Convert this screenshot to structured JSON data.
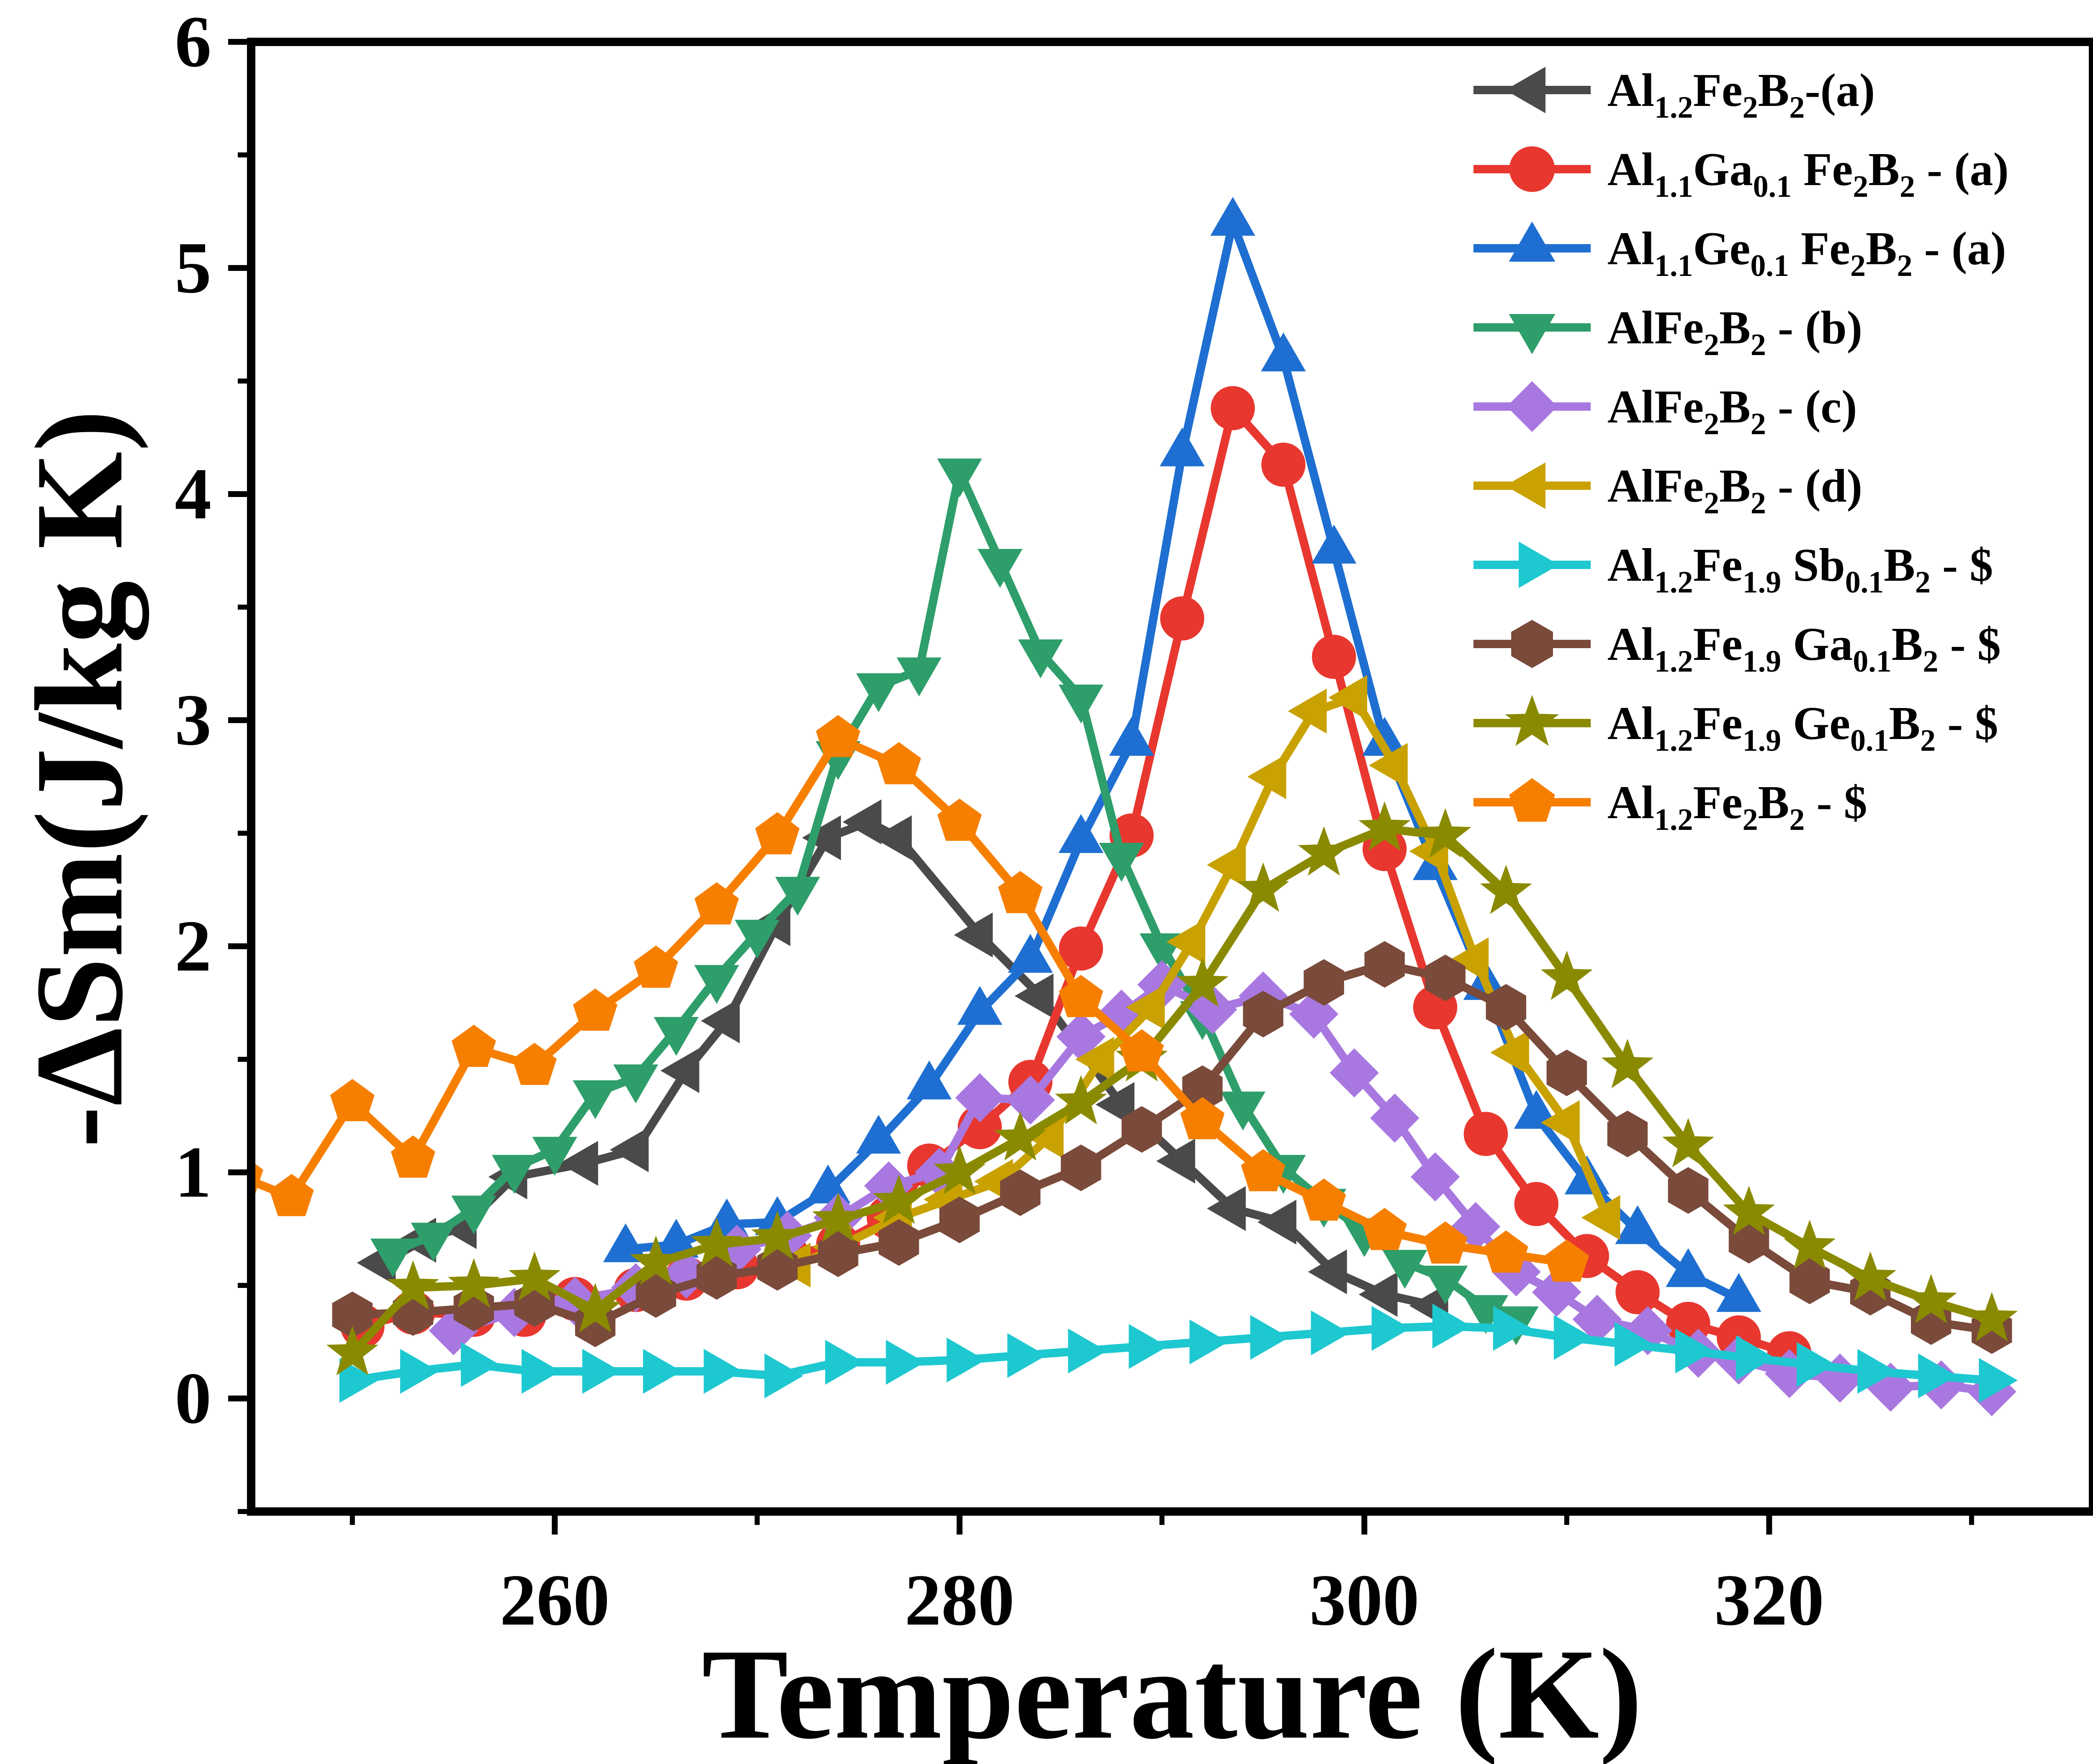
{
  "chart_data": {
    "type": "line",
    "xlabel": "Temperature (K)",
    "ylabel": "-ΔSm(J/kg K)",
    "xlim": [
      245,
      336
    ],
    "ylim": [
      -0.5,
      6
    ],
    "xticks": [
      "260",
      "280",
      "300",
      "320"
    ],
    "yticks": [
      "0",
      "1",
      "2",
      "3",
      "4",
      "5",
      "6"
    ],
    "grid": false,
    "legend_position": "top-right",
    "series": [
      {
        "name": "Al1.2Fe2B2-(a)",
        "label": [
          {
            "t": "Al"
          },
          {
            "t": "1.2",
            "sub": true
          },
          {
            "t": "Fe"
          },
          {
            "t": "2",
            "sub": true
          },
          {
            "t": "B"
          },
          {
            "t": "2",
            "sub": true
          },
          {
            "t": "-(a)"
          }
        ],
        "color": "#4a4a4a",
        "marker": "triangle-left",
        "x": [
          251.5,
          253.5,
          255.5,
          258,
          261.5,
          264,
          266.5,
          268.5,
          271,
          273.5,
          275.5,
          277,
          281,
          284,
          288,
          291,
          293.5,
          296,
          298.5,
          301,
          303.5
        ],
        "y": [
          0.6,
          0.7,
          0.76,
          0.98,
          1.04,
          1.1,
          1.45,
          1.67,
          2.1,
          2.48,
          2.55,
          2.48,
          2.05,
          1.78,
          1.3,
          1.05,
          0.84,
          0.78,
          0.56,
          0.46,
          0.41
        ]
      },
      {
        "name": "Al1.1Ga0.1 Fe2B2 - (a)",
        "label": [
          {
            "t": "Al"
          },
          {
            "t": "1.1",
            "sub": true
          },
          {
            "t": "Ga"
          },
          {
            "t": "0.1",
            "sub": true
          },
          {
            "t": " Fe"
          },
          {
            "t": "2",
            "sub": true
          },
          {
            "t": "B"
          },
          {
            "t": "2",
            "sub": true
          },
          {
            "t": " - (a)"
          }
        ],
        "color": "#e8372f",
        "marker": "circle",
        "x": [
          250.5,
          253,
          256,
          258.5,
          261,
          264,
          266.5,
          269,
          271.5,
          274,
          276.5,
          278.5,
          281,
          283.5,
          286,
          288.5,
          291,
          293.5,
          296,
          298.5,
          301,
          303.5,
          306,
          308.5,
          311,
          313.5,
          316,
          318.5,
          321
        ],
        "y": [
          0.32,
          0.38,
          0.37,
          0.37,
          0.44,
          0.48,
          0.53,
          0.58,
          0.63,
          0.68,
          0.8,
          1.03,
          1.2,
          1.4,
          1.99,
          2.49,
          3.45,
          4.38,
          4.13,
          3.28,
          2.43,
          1.73,
          1.17,
          0.86,
          0.63,
          0.47,
          0.33,
          0.27,
          0.2
        ]
      },
      {
        "name": "Al1.1Ge0.1 Fe2B2 - (a)",
        "label": [
          {
            "t": "Al"
          },
          {
            "t": "1.1",
            "sub": true
          },
          {
            "t": "Ge"
          },
          {
            "t": "0.1",
            "sub": true
          },
          {
            "t": " Fe"
          },
          {
            "t": "2",
            "sub": true
          },
          {
            "t": "B"
          },
          {
            "t": "2",
            "sub": true
          },
          {
            "t": " - (a)"
          }
        ],
        "color": "#1e6fd1",
        "marker": "triangle-up",
        "x": [
          263.5,
          266,
          268.5,
          271,
          273.5,
          276,
          278.5,
          281,
          283.5,
          286,
          288.5,
          291,
          293.5,
          296,
          298.5,
          301,
          303.5,
          306,
          308.5,
          311,
          313.5,
          316,
          318.5
        ],
        "y": [
          0.66,
          0.68,
          0.77,
          0.78,
          0.92,
          1.14,
          1.38,
          1.71,
          1.94,
          2.47,
          2.9,
          4.18,
          5.2,
          4.6,
          3.75,
          2.9,
          2.35,
          1.82,
          1.25,
          0.96,
          0.74,
          0.55,
          0.44
        ]
      },
      {
        "name": "AlFe2B2 - (b)",
        "label": [
          {
            "t": "AlFe"
          },
          {
            "t": "2",
            "sub": true
          },
          {
            "t": "B"
          },
          {
            "t": "2",
            "sub": true
          },
          {
            "t": " - (b)"
          }
        ],
        "color": "#2e9e6a",
        "marker": "triangle-down",
        "x": [
          252,
          254,
          256,
          258,
          260,
          262,
          264,
          266,
          268,
          270,
          272,
          274,
          276,
          278,
          280,
          282,
          284,
          286,
          288,
          290,
          292,
          294,
          296,
          298,
          300,
          302,
          304,
          306,
          307.5
        ],
        "y": [
          0.65,
          0.72,
          0.84,
          1.02,
          1.1,
          1.35,
          1.42,
          1.63,
          1.86,
          2.06,
          2.25,
          2.85,
          3.15,
          3.22,
          4.1,
          3.7,
          3.3,
          3.1,
          2.4,
          2.0,
          1.7,
          1.3,
          1.02,
          0.87,
          0.74,
          0.6,
          0.53,
          0.4,
          0.35
        ]
      },
      {
        "name": "AlFe2B2 - (c)",
        "label": [
          {
            "t": "AlFe"
          },
          {
            "t": "2",
            "sub": true
          },
          {
            "t": "B"
          },
          {
            "t": "2",
            "sub": true
          },
          {
            "t": " - (c)"
          }
        ],
        "color": "#a878e0",
        "marker": "diamond",
        "x": [
          255,
          258,
          261,
          264,
          266.5,
          269,
          271.5,
          274,
          276.5,
          279,
          281,
          283.5,
          286,
          288,
          290,
          292.5,
          295,
          297.5,
          299.5,
          301.5,
          303.5,
          305.5,
          307.5,
          309.5,
          311.5,
          314,
          316.5,
          318.5,
          321,
          323.5,
          326,
          328.5,
          331
        ],
        "y": [
          0.3,
          0.38,
          0.43,
          0.49,
          0.55,
          0.66,
          0.72,
          0.8,
          0.94,
          1.0,
          1.33,
          1.32,
          1.6,
          1.7,
          1.83,
          1.72,
          1.78,
          1.7,
          1.44,
          1.24,
          0.98,
          0.76,
          0.56,
          0.47,
          0.35,
          0.3,
          0.2,
          0.17,
          0.11,
          0.09,
          0.05,
          0.06,
          0.03
        ]
      },
      {
        "name": "AlFe2B2 - (d)",
        "label": [
          {
            "t": "AlFe"
          },
          {
            "t": "2",
            "sub": true
          },
          {
            "t": "B"
          },
          {
            "t": "2",
            "sub": true
          },
          {
            "t": " - (d)"
          }
        ],
        "color": "#c9a100",
        "marker": "triangle-left",
        "x": [
          272,
          274,
          277,
          279.5,
          282,
          284.5,
          287,
          289.5,
          291.5,
          293.5,
          295.5,
          297.5,
          299.5,
          301.5,
          303.5,
          305.5,
          307.5,
          310,
          312
        ],
        "y": [
          0.59,
          0.67,
          0.8,
          0.88,
          0.96,
          1.16,
          1.5,
          1.73,
          2.02,
          2.36,
          2.75,
          3.04,
          3.1,
          2.8,
          2.42,
          1.94,
          1.53,
          1.22,
          0.8
        ]
      },
      {
        "name": "Al1.2Fe1.9 Sb0.1B2 - $",
        "label": [
          {
            "t": "Al"
          },
          {
            "t": "1.2",
            "sub": true
          },
          {
            "t": "Fe"
          },
          {
            "t": "1.9",
            "sub": true
          },
          {
            "t": " Sb"
          },
          {
            "t": "0.1",
            "sub": true
          },
          {
            "t": "B"
          },
          {
            "t": "2",
            "sub": true
          },
          {
            "t": " - $"
          }
        ],
        "color": "#1ec8d0",
        "marker": "triangle-right",
        "x": [
          250,
          253,
          256,
          259,
          262,
          265,
          268,
          271,
          274,
          277,
          280,
          283,
          286,
          289,
          292,
          295,
          298,
          301,
          304,
          307,
          310,
          313,
          316,
          319,
          322,
          325,
          328,
          331
        ],
        "y": [
          0.08,
          0.12,
          0.15,
          0.12,
          0.12,
          0.12,
          0.12,
          0.1,
          0.16,
          0.16,
          0.17,
          0.19,
          0.21,
          0.23,
          0.25,
          0.27,
          0.29,
          0.31,
          0.32,
          0.31,
          0.27,
          0.24,
          0.21,
          0.18,
          0.15,
          0.12,
          0.1,
          0.08
        ]
      },
      {
        "name": "Al1.2Fe1.9 Ga0.1B2 - $",
        "label": [
          {
            "t": "Al"
          },
          {
            "t": "1.2",
            "sub": true
          },
          {
            "t": "Fe"
          },
          {
            "t": "1.9",
            "sub": true
          },
          {
            "t": " Ga"
          },
          {
            "t": "0.1",
            "sub": true
          },
          {
            "t": "B"
          },
          {
            "t": "2",
            "sub": true
          },
          {
            "t": " - $"
          }
        ],
        "color": "#7a4a3a",
        "marker": "hexagon",
        "x": [
          250,
          253,
          256,
          259,
          262,
          265,
          268,
          271,
          274,
          277,
          280,
          283,
          286,
          289,
          292,
          295,
          298,
          301,
          304,
          307,
          310,
          313,
          316,
          319,
          322,
          325,
          328,
          331
        ],
        "y": [
          0.37,
          0.38,
          0.4,
          0.42,
          0.33,
          0.46,
          0.54,
          0.58,
          0.64,
          0.69,
          0.79,
          0.91,
          1.02,
          1.19,
          1.37,
          1.7,
          1.84,
          1.92,
          1.86,
          1.73,
          1.44,
          1.17,
          0.92,
          0.7,
          0.52,
          0.47,
          0.34,
          0.3
        ]
      },
      {
        "name": "Al1.2Fe1.9 Ge0.1B2 - $",
        "label": [
          {
            "t": "Al"
          },
          {
            "t": "1.2",
            "sub": true
          },
          {
            "t": "Fe"
          },
          {
            "t": "1.9",
            "sub": true
          },
          {
            "t": " Ge"
          },
          {
            "t": "0.1",
            "sub": true
          },
          {
            "t": "B"
          },
          {
            "t": "2",
            "sub": true
          },
          {
            "t": " - $"
          }
        ],
        "color": "#8a8a00",
        "marker": "star",
        "x": [
          250,
          253,
          256,
          259,
          262,
          265,
          268,
          271,
          274,
          277,
          280,
          283,
          286,
          289,
          292,
          295,
          298,
          301,
          304,
          307,
          310,
          313,
          316,
          319,
          322,
          325,
          328,
          331
        ],
        "y": [
          0.2,
          0.49,
          0.5,
          0.53,
          0.39,
          0.6,
          0.68,
          0.71,
          0.79,
          0.87,
          1.0,
          1.15,
          1.31,
          1.5,
          1.83,
          2.25,
          2.41,
          2.52,
          2.49,
          2.24,
          1.86,
          1.47,
          1.12,
          0.82,
          0.67,
          0.53,
          0.43,
          0.35
        ]
      },
      {
        "name": "Al1.2Fe2B2 - $",
        "label": [
          {
            "t": "Al"
          },
          {
            "t": "1.2",
            "sub": true
          },
          {
            "t": "Fe"
          },
          {
            "t": "2",
            "sub": true
          },
          {
            "t": "B"
          },
          {
            "t": "2",
            "sub": true
          },
          {
            "t": " - $"
          }
        ],
        "color": "#f77f00",
        "marker": "pentagon",
        "x": [
          244.5,
          247,
          250,
          253,
          256,
          259,
          262,
          265,
          268,
          271,
          274,
          277,
          280,
          283,
          286,
          289,
          292,
          295,
          298,
          301,
          304,
          307,
          310
        ],
        "y": [
          0.98,
          0.89,
          1.31,
          1.06,
          1.55,
          1.47,
          1.71,
          1.9,
          2.18,
          2.49,
          2.92,
          2.8,
          2.55,
          2.23,
          1.77,
          1.53,
          1.23,
          1.0,
          0.87,
          0.74,
          0.68,
          0.64,
          0.6
        ]
      }
    ]
  }
}
